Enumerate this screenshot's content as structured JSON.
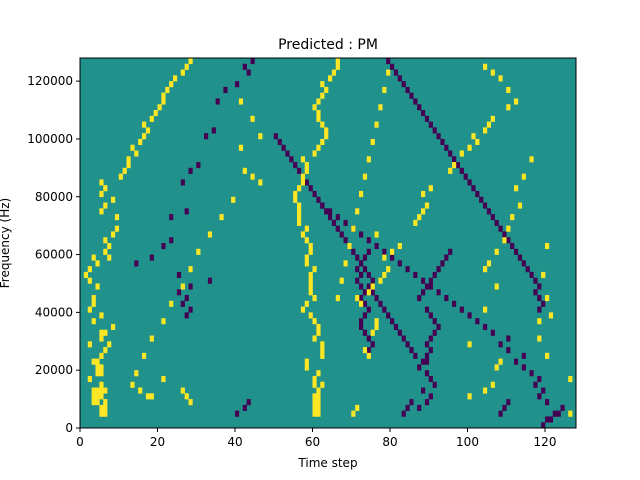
{
  "chart_data": {
    "type": "heatmap",
    "title": "Predicted : PM",
    "xlabel": "Time step",
    "ylabel": "Frequency (Hz)",
    "xlim": [
      0,
      128
    ],
    "ylim": [
      0,
      128000
    ],
    "x_ticks": [
      0,
      20,
      40,
      60,
      80,
      100,
      120
    ],
    "y_ticks": [
      0,
      20000,
      40000,
      60000,
      80000,
      100000,
      120000
    ],
    "x_tick_labels": [
      "0",
      "20",
      "40",
      "60",
      "80",
      "100",
      "120"
    ],
    "y_tick_labels": [
      "0",
      "20000",
      "40000",
      "60000",
      "80000",
      "100000",
      "120000"
    ],
    "rows": 64,
    "cols": 128,
    "bin_height_hz": 2000,
    "background_value": 0,
    "values_legend": {
      "-1": "low",
      "0": "neutral",
      "1": "high"
    },
    "colors": {
      "low": "#440154",
      "neutral": "#21918c",
      "high": "#fde725"
    },
    "high_cells": [
      [
        3,
        6
      ],
      [
        4,
        6
      ],
      [
        4,
        4
      ],
      [
        4,
        3
      ],
      [
        5,
        3
      ],
      [
        5,
        4
      ],
      [
        5,
        5
      ],
      [
        6,
        3
      ],
      [
        6,
        4
      ],
      [
        2,
        5
      ],
      [
        2,
        6
      ],
      [
        3,
        5
      ],
      [
        6,
        5
      ],
      [
        7,
        5
      ],
      [
        6,
        6
      ],
      [
        5,
        17
      ],
      [
        5,
        18
      ],
      [
        6,
        15
      ],
      [
        7,
        13
      ],
      [
        8,
        21
      ],
      [
        8,
        2
      ],
      [
        9,
        4
      ],
      [
        9,
        5
      ],
      [
        10,
        5
      ],
      [
        10,
        4
      ],
      [
        11,
        3
      ],
      [
        11,
        4
      ],
      [
        12,
        5
      ],
      [
        13,
        6
      ],
      [
        14,
        2
      ],
      [
        14,
        7
      ],
      [
        15,
        5
      ],
      [
        16,
        5
      ],
      [
        16,
        6
      ],
      [
        17,
        8
      ],
      [
        18,
        3
      ],
      [
        19,
        5
      ],
      [
        20,
        2
      ],
      [
        21,
        3
      ],
      [
        22,
        3
      ],
      [
        24,
        4
      ],
      [
        25,
        2
      ],
      [
        26,
        1
      ],
      [
        27,
        2
      ],
      [
        28,
        4
      ],
      [
        29,
        7
      ],
      [
        29,
        3
      ],
      [
        30,
        6
      ],
      [
        31,
        7
      ],
      [
        32,
        6
      ],
      [
        33,
        8
      ],
      [
        34,
        9
      ],
      [
        36,
        9
      ],
      [
        37,
        5
      ],
      [
        38,
        6
      ],
      [
        39,
        8
      ],
      [
        40,
        5
      ],
      [
        41,
        6
      ],
      [
        42,
        5
      ],
      [
        43,
        10
      ],
      [
        44,
        11
      ],
      [
        45,
        12
      ],
      [
        46,
        12
      ],
      [
        47,
        14
      ],
      [
        48,
        13
      ],
      [
        49,
        15
      ],
      [
        50,
        16
      ],
      [
        51,
        17
      ],
      [
        52,
        16
      ],
      [
        53,
        18
      ],
      [
        54,
        19
      ],
      [
        55,
        20
      ],
      [
        56,
        21
      ],
      [
        57,
        21
      ],
      [
        58,
        22
      ],
      [
        59,
        23
      ],
      [
        60,
        24
      ],
      [
        61,
        26
      ],
      [
        62,
        27
      ],
      [
        63,
        28
      ],
      [
        4,
        28
      ],
      [
        5,
        27
      ],
      [
        6,
        26
      ],
      [
        2,
        60
      ],
      [
        2,
        61
      ],
      [
        3,
        61
      ],
      [
        3,
        60
      ],
      [
        4,
        60
      ],
      [
        4,
        61
      ],
      [
        5,
        60
      ],
      [
        5,
        61
      ],
      [
        6,
        61
      ],
      [
        7,
        62
      ],
      [
        7,
        60
      ],
      [
        8,
        60
      ],
      [
        9,
        61
      ],
      [
        10,
        58
      ],
      [
        11,
        58
      ],
      [
        12,
        62
      ],
      [
        13,
        62
      ],
      [
        14,
        62
      ],
      [
        15,
        60
      ],
      [
        16,
        61
      ],
      [
        17,
        61
      ],
      [
        18,
        60
      ],
      [
        19,
        59
      ],
      [
        20,
        57
      ],
      [
        21,
        58
      ],
      [
        22,
        60
      ],
      [
        23,
        59
      ],
      [
        24,
        59
      ],
      [
        25,
        59
      ],
      [
        26,
        59
      ],
      [
        27,
        60
      ],
      [
        28,
        58
      ],
      [
        29,
        58
      ],
      [
        30,
        59
      ],
      [
        31,
        59
      ],
      [
        32,
        58
      ],
      [
        33,
        57
      ],
      [
        34,
        58
      ],
      [
        35,
        56
      ],
      [
        36,
        56
      ],
      [
        37,
        56
      ],
      [
        38,
        56
      ],
      [
        39,
        55
      ],
      [
        40,
        55
      ],
      [
        41,
        56
      ],
      [
        42,
        57
      ],
      [
        43,
        57
      ],
      [
        44,
        58
      ],
      [
        45,
        58
      ],
      [
        46,
        57
      ],
      [
        47,
        60
      ],
      [
        48,
        61
      ],
      [
        49,
        62
      ],
      [
        50,
        63
      ],
      [
        51,
        63
      ],
      [
        52,
        62
      ],
      [
        53,
        61
      ],
      [
        54,
        61
      ],
      [
        55,
        60
      ],
      [
        56,
        61
      ],
      [
        57,
        62
      ],
      [
        58,
        63
      ],
      [
        59,
        62
      ],
      [
        60,
        64
      ],
      [
        61,
        65
      ],
      [
        62,
        66
      ],
      [
        63,
        66
      ],
      [
        16,
        75
      ],
      [
        17,
        76
      ],
      [
        18,
        76
      ],
      [
        21,
        72
      ],
      [
        22,
        71
      ],
      [
        23,
        74
      ],
      [
        24,
        75
      ],
      [
        25,
        77
      ],
      [
        26,
        78
      ],
      [
        27,
        79
      ],
      [
        29,
        78
      ],
      [
        30,
        80
      ],
      [
        31,
        82
      ],
      [
        33,
        76
      ],
      [
        35,
        86
      ],
      [
        36,
        87
      ],
      [
        37,
        88
      ],
      [
        38,
        89
      ],
      [
        40,
        88
      ],
      [
        41,
        90
      ],
      [
        44,
        95
      ],
      [
        45,
        96
      ],
      [
        47,
        98
      ],
      [
        48,
        100
      ],
      [
        49,
        102
      ],
      [
        50,
        101
      ],
      [
        51,
        104
      ],
      [
        52,
        105
      ],
      [
        53,
        106
      ],
      [
        55,
        110
      ],
      [
        56,
        112
      ],
      [
        58,
        110
      ],
      [
        60,
        108
      ],
      [
        61,
        106
      ],
      [
        62,
        104
      ],
      [
        5,
        100
      ],
      [
        6,
        104
      ],
      [
        7,
        106
      ],
      [
        10,
        107
      ],
      [
        11,
        108
      ],
      [
        14,
        100
      ],
      [
        20,
        104
      ],
      [
        24,
        107
      ],
      [
        27,
        104
      ],
      [
        28,
        105
      ],
      [
        30,
        107
      ],
      [
        32,
        109
      ],
      [
        34,
        110
      ],
      [
        36,
        111
      ],
      [
        38,
        113
      ],
      [
        41,
        112
      ],
      [
        43,
        114
      ],
      [
        46,
        116
      ],
      [
        8,
        126
      ],
      [
        2,
        126
      ],
      [
        12,
        120
      ],
      [
        15,
        118
      ],
      [
        18,
        118
      ],
      [
        19,
        121
      ],
      [
        22,
        120
      ],
      [
        26,
        119
      ],
      [
        31,
        120
      ],
      [
        42,
        46
      ],
      [
        43,
        44
      ],
      [
        44,
        42
      ],
      [
        50,
        46
      ],
      [
        53,
        44
      ],
      [
        56,
        41
      ],
      [
        48,
        41
      ],
      [
        39,
        39
      ],
      [
        36,
        36
      ],
      [
        33,
        33
      ],
      [
        30,
        30
      ],
      [
        27,
        28
      ],
      [
        24,
        26
      ],
      [
        21,
        23
      ],
      [
        18,
        21
      ],
      [
        15,
        18
      ],
      [
        12,
        16
      ],
      [
        9,
        14
      ],
      [
        22,
        66
      ],
      [
        25,
        67
      ],
      [
        28,
        68
      ],
      [
        31,
        69
      ],
      [
        34,
        70
      ],
      [
        37,
        71
      ],
      [
        40,
        72
      ],
      [
        43,
        73
      ],
      [
        46,
        74
      ],
      [
        49,
        75
      ],
      [
        52,
        76
      ],
      [
        55,
        77
      ],
      [
        58,
        78
      ],
      [
        61,
        79
      ],
      [
        2,
        70
      ],
      [
        3,
        71
      ],
      [
        12,
        74
      ],
      [
        13,
        73
      ]
    ],
    "low_cells": [
      [
        1,
        121
      ],
      [
        2,
        122
      ],
      [
        2,
        123
      ],
      [
        3,
        124
      ],
      [
        4,
        120
      ],
      [
        5,
        118
      ],
      [
        6,
        119
      ],
      [
        7,
        117
      ],
      [
        8,
        118
      ],
      [
        9,
        116
      ],
      [
        10,
        114
      ],
      [
        11,
        112
      ],
      [
        12,
        114
      ],
      [
        13,
        110
      ],
      [
        14,
        108
      ],
      [
        15,
        110
      ],
      [
        16,
        106
      ],
      [
        17,
        104
      ],
      [
        18,
        102
      ],
      [
        19,
        100
      ],
      [
        20,
        98
      ],
      [
        21,
        96
      ],
      [
        22,
        94
      ],
      [
        23,
        92
      ],
      [
        24,
        90
      ],
      [
        25,
        88
      ],
      [
        26,
        86
      ],
      [
        27,
        84
      ],
      [
        28,
        82
      ],
      [
        29,
        80
      ],
      [
        30,
        78
      ],
      [
        31,
        76
      ],
      [
        32,
        74
      ],
      [
        33,
        72
      ],
      [
        34,
        70
      ],
      [
        35,
        68
      ],
      [
        36,
        66
      ],
      [
        37,
        64
      ],
      [
        38,
        62
      ],
      [
        3,
        87
      ],
      [
        4,
        89
      ],
      [
        5,
        90
      ],
      [
        6,
        88
      ],
      [
        7,
        91
      ],
      [
        8,
        90
      ],
      [
        9,
        89
      ],
      [
        10,
        87
      ],
      [
        11,
        88
      ],
      [
        12,
        86
      ],
      [
        13,
        85
      ],
      [
        14,
        84
      ],
      [
        15,
        83
      ],
      [
        16,
        82
      ],
      [
        17,
        81
      ],
      [
        18,
        80
      ],
      [
        19,
        79
      ],
      [
        20,
        78
      ],
      [
        21,
        77
      ],
      [
        22,
        76
      ],
      [
        23,
        75
      ],
      [
        24,
        74
      ],
      [
        25,
        75
      ],
      [
        26,
        74
      ],
      [
        27,
        73
      ],
      [
        28,
        72
      ],
      [
        29,
        71
      ],
      [
        30,
        70
      ],
      [
        31,
        69
      ],
      [
        32,
        68
      ],
      [
        33,
        67
      ],
      [
        34,
        66
      ],
      [
        35,
        65
      ],
      [
        36,
        64
      ],
      [
        37,
        63
      ],
      [
        38,
        62
      ],
      [
        39,
        61
      ],
      [
        40,
        60
      ],
      [
        41,
        59
      ],
      [
        42,
        58
      ],
      [
        43,
        57
      ],
      [
        44,
        56
      ],
      [
        45,
        55
      ],
      [
        46,
        54
      ],
      [
        47,
        53
      ],
      [
        48,
        52
      ],
      [
        49,
        51
      ],
      [
        50,
        50
      ],
      [
        13,
        74
      ],
      [
        14,
        75
      ],
      [
        15,
        74
      ],
      [
        16,
        73
      ],
      [
        17,
        72
      ],
      [
        18,
        72
      ],
      [
        19,
        73
      ],
      [
        20,
        74
      ],
      [
        21,
        73
      ],
      [
        22,
        72
      ],
      [
        23,
        73
      ],
      [
        24,
        72
      ],
      [
        25,
        71
      ],
      [
        26,
        72
      ],
      [
        27,
        71
      ],
      [
        28,
        72
      ],
      [
        29,
        73
      ],
      [
        30,
        74
      ],
      [
        11,
        89
      ],
      [
        12,
        89
      ],
      [
        13,
        90
      ],
      [
        14,
        89
      ],
      [
        15,
        90
      ],
      [
        16,
        91
      ],
      [
        17,
        92
      ],
      [
        18,
        91
      ],
      [
        19,
        90
      ],
      [
        20,
        89
      ],
      [
        22,
        87
      ],
      [
        23,
        88
      ],
      [
        24,
        89
      ],
      [
        25,
        90
      ],
      [
        26,
        91
      ],
      [
        27,
        92
      ],
      [
        28,
        93
      ],
      [
        29,
        94
      ],
      [
        30,
        95
      ],
      [
        2,
        40
      ],
      [
        3,
        42
      ],
      [
        4,
        43
      ],
      [
        2,
        83
      ],
      [
        3,
        84
      ],
      [
        4,
        85
      ],
      [
        2,
        108
      ],
      [
        3,
        109
      ],
      [
        4,
        110
      ],
      [
        0,
        119
      ],
      [
        1,
        120
      ],
      [
        19,
        27
      ],
      [
        20,
        28
      ],
      [
        21,
        26
      ],
      [
        22,
        27
      ],
      [
        23,
        25
      ],
      [
        24,
        28
      ],
      [
        25,
        33
      ],
      [
        26,
        25
      ],
      [
        28,
        14
      ],
      [
        29,
        18
      ],
      [
        31,
        21
      ],
      [
        32,
        23
      ],
      [
        36,
        23
      ],
      [
        37,
        27
      ],
      [
        42,
        26
      ],
      [
        44,
        28
      ],
      [
        45,
        30
      ],
      [
        50,
        32
      ],
      [
        51,
        34
      ],
      [
        56,
        35
      ],
      [
        58,
        37
      ],
      [
        59,
        40
      ],
      [
        61,
        43
      ],
      [
        62,
        42
      ],
      [
        63,
        44
      ],
      [
        20,
        118
      ],
      [
        21,
        119
      ],
      [
        22,
        118
      ],
      [
        23,
        117
      ],
      [
        24,
        118
      ],
      [
        25,
        117
      ],
      [
        26,
        116
      ],
      [
        27,
        115
      ],
      [
        28,
        114
      ],
      [
        29,
        113
      ],
      [
        30,
        112
      ],
      [
        31,
        111
      ],
      [
        32,
        110
      ],
      [
        33,
        109
      ],
      [
        34,
        108
      ],
      [
        35,
        107
      ],
      [
        36,
        106
      ],
      [
        37,
        105
      ],
      [
        38,
        104
      ],
      [
        39,
        103
      ],
      [
        40,
        102
      ],
      [
        41,
        101
      ],
      [
        42,
        100
      ],
      [
        43,
        99
      ],
      [
        44,
        98
      ],
      [
        45,
        97
      ],
      [
        46,
        96
      ],
      [
        47,
        95
      ],
      [
        48,
        94
      ],
      [
        49,
        93
      ],
      [
        50,
        92
      ],
      [
        51,
        91
      ],
      [
        52,
        90
      ],
      [
        53,
        89
      ],
      [
        54,
        88
      ],
      [
        55,
        87
      ],
      [
        56,
        86
      ],
      [
        57,
        85
      ],
      [
        58,
        84
      ],
      [
        59,
        83
      ],
      [
        60,
        82
      ],
      [
        61,
        81
      ],
      [
        62,
        80
      ],
      [
        63,
        79
      ]
    ]
  }
}
